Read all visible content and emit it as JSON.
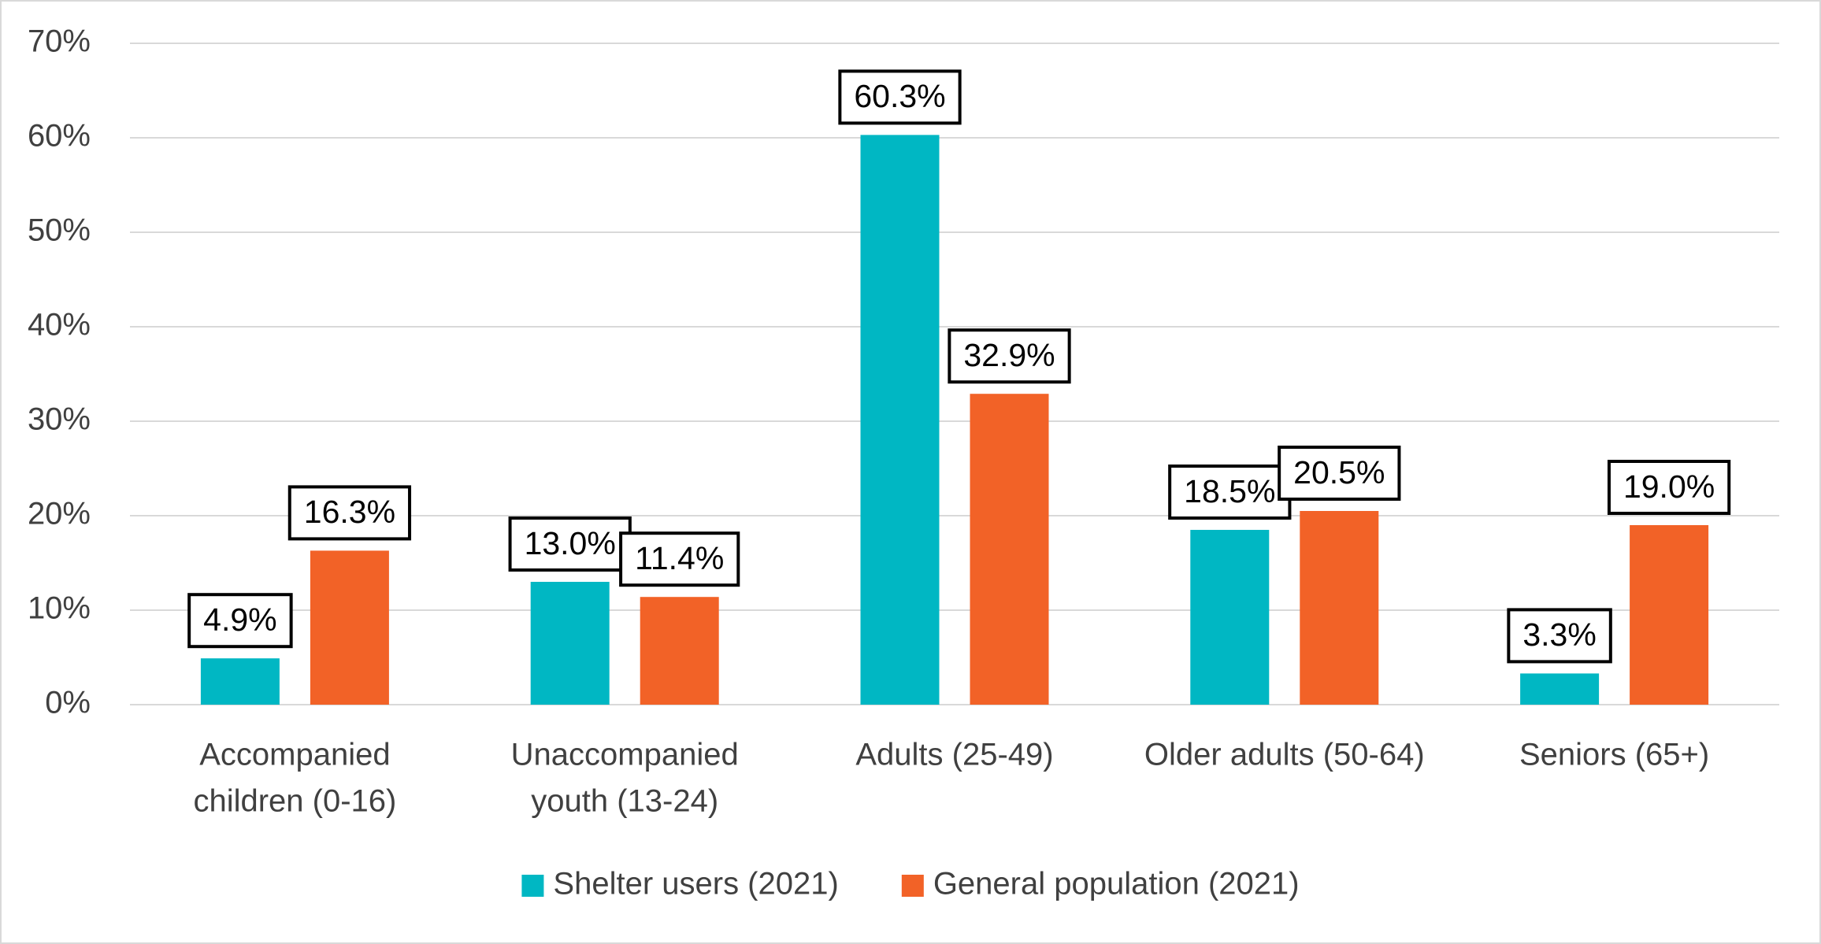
{
  "chart_data": {
    "type": "bar",
    "categories": [
      [
        "Accompanied",
        "children (0-16)"
      ],
      [
        "Unaccompanied",
        "youth (13-24)"
      ],
      [
        "Adults (25-49)"
      ],
      [
        "Older adults (50-64)"
      ],
      [
        "Seniors (65+)"
      ]
    ],
    "series": [
      {
        "name": "Shelter users (2021)",
        "color": "#00b7c3",
        "values": [
          4.9,
          13.0,
          60.3,
          18.5,
          3.3
        ],
        "value_labels": [
          "4.9%",
          "13.0%",
          "60.3%",
          "18.5%",
          "3.3%"
        ]
      },
      {
        "name": "General population (2021)",
        "color": "#f26227",
        "values": [
          16.3,
          11.4,
          32.9,
          20.5,
          19.0
        ],
        "value_labels": [
          "16.3%",
          "11.4%",
          "32.9%",
          "20.5%",
          "19.0%"
        ]
      }
    ],
    "ylim": [
      0,
      70
    ],
    "yticks": [
      {
        "value": 0,
        "label": "0%"
      },
      {
        "value": 10,
        "label": "10%"
      },
      {
        "value": 20,
        "label": "20%"
      },
      {
        "value": 30,
        "label": "30%"
      },
      {
        "value": 40,
        "label": "40%"
      },
      {
        "value": 50,
        "label": "50%"
      },
      {
        "value": 60,
        "label": "60%"
      },
      {
        "value": 70,
        "label": "70%"
      }
    ],
    "grid": true,
    "legend": "bottom"
  }
}
